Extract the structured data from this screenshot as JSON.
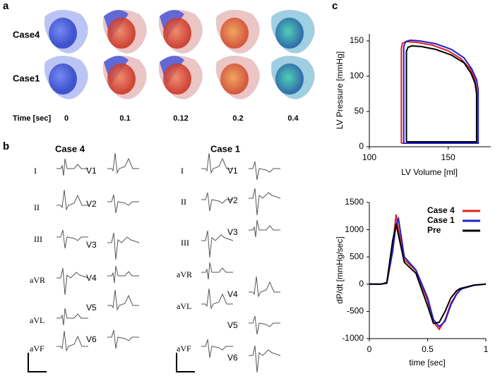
{
  "panel_a": {
    "label": "a",
    "rows": [
      "Case4",
      "Case1"
    ],
    "time_label": "Time [sec]",
    "times": [
      0,
      0.1,
      0.12,
      0.2,
      0.4
    ]
  },
  "panel_b": {
    "label": "b",
    "groups": [
      {
        "title": "Case 4",
        "limb_leads": [
          "I",
          "II",
          "III",
          "aVR",
          "aVL",
          "aVF"
        ],
        "chest_leads": [
          "V1",
          "V2",
          "V3",
          "V4",
          "V5",
          "V6"
        ]
      },
      {
        "title": "Case 1",
        "limb_leads": [
          "I",
          "II",
          "III",
          "aVR",
          "aVL",
          "aVF"
        ],
        "chest_leads": [
          "V1",
          "V2",
          "V3",
          "V4",
          "V5",
          "V6"
        ]
      }
    ]
  },
  "panel_c": {
    "label": "c"
  },
  "chart_data": [
    {
      "type": "line",
      "x_label": "LV Volume [ml]",
      "y_label": "LV Pressure [mmHg]",
      "xlim": [
        100,
        177
      ],
      "ylim": [
        0,
        160
      ],
      "xticks": [
        100,
        150
      ],
      "yticks": [
        0,
        50,
        100,
        150
      ],
      "series": [
        {
          "color": "#e02020",
          "x": [
            120.3,
            120.3,
            121,
            124,
            130,
            140,
            150,
            158,
            164,
            167,
            168,
            168,
            168,
            120.3
          ],
          "values": [
            5,
            140,
            147,
            149,
            148,
            144,
            136,
            125,
            110,
            95,
            80,
            20,
            5,
            5
          ]
        },
        {
          "color": "#2020d0",
          "x": [
            121.8,
            121.8,
            123,
            126,
            132,
            142,
            152,
            160,
            165,
            168,
            169,
            169,
            169,
            121.8
          ],
          "values": [
            5,
            142,
            149,
            151,
            150,
            146,
            138,
            126,
            110,
            95,
            80,
            20,
            5,
            5
          ]
        },
        {
          "color": "#000000",
          "x": [
            123.5,
            123.5,
            124.5,
            127,
            133,
            142,
            152,
            160,
            164.5,
            167,
            168,
            168,
            168,
            123.5
          ],
          "values": [
            7,
            135,
            141,
            143,
            142,
            138,
            130,
            119,
            104,
            90,
            75,
            20,
            7,
            7
          ]
        }
      ]
    },
    {
      "type": "line",
      "x_label": "time [sec]",
      "y_label": "dP/dt [mmHg/sec]",
      "xlim": [
        0,
        1
      ],
      "ylim": [
        -1000,
        1500
      ],
      "xticks": [
        0,
        0.5,
        1
      ],
      "yticks": [
        -1000,
        -500,
        0,
        500,
        1000,
        1500
      ],
      "legend": "upper-right",
      "series": [
        {
          "name": "Case 4",
          "color": "#e02020",
          "x": [
            0,
            0.1,
            0.15,
            0.2,
            0.23,
            0.25,
            0.3,
            0.4,
            0.5,
            0.55,
            0.6,
            0.65,
            0.7,
            0.75,
            0.78,
            0.8,
            0.9,
            1
          ],
          "values": [
            0,
            0,
            20,
            700,
            1280,
            1000,
            450,
            250,
            -300,
            -700,
            -830,
            -650,
            -350,
            -170,
            -100,
            -80,
            -20,
            0
          ]
        },
        {
          "name": "Case 1",
          "color": "#2020d0",
          "x": [
            0,
            0.1,
            0.15,
            0.2,
            0.23,
            0.25,
            0.3,
            0.4,
            0.5,
            0.55,
            0.6,
            0.65,
            0.7,
            0.75,
            0.78,
            0.8,
            0.9,
            1
          ],
          "values": [
            0,
            0,
            15,
            600,
            1100,
            1200,
            500,
            260,
            -250,
            -650,
            -780,
            -680,
            -380,
            -180,
            -110,
            -80,
            -20,
            0
          ]
        },
        {
          "name": "Pre",
          "color": "#000000",
          "x": [
            0,
            0.1,
            0.15,
            0.2,
            0.23,
            0.25,
            0.3,
            0.4,
            0.5,
            0.55,
            0.6,
            0.65,
            0.7,
            0.75,
            0.78,
            0.8,
            0.9,
            1
          ],
          "values": [
            0,
            0,
            30,
            800,
            1100,
            900,
            400,
            200,
            -400,
            -720,
            -700,
            -500,
            -250,
            -120,
            -80,
            -70,
            -15,
            0
          ]
        }
      ]
    }
  ]
}
